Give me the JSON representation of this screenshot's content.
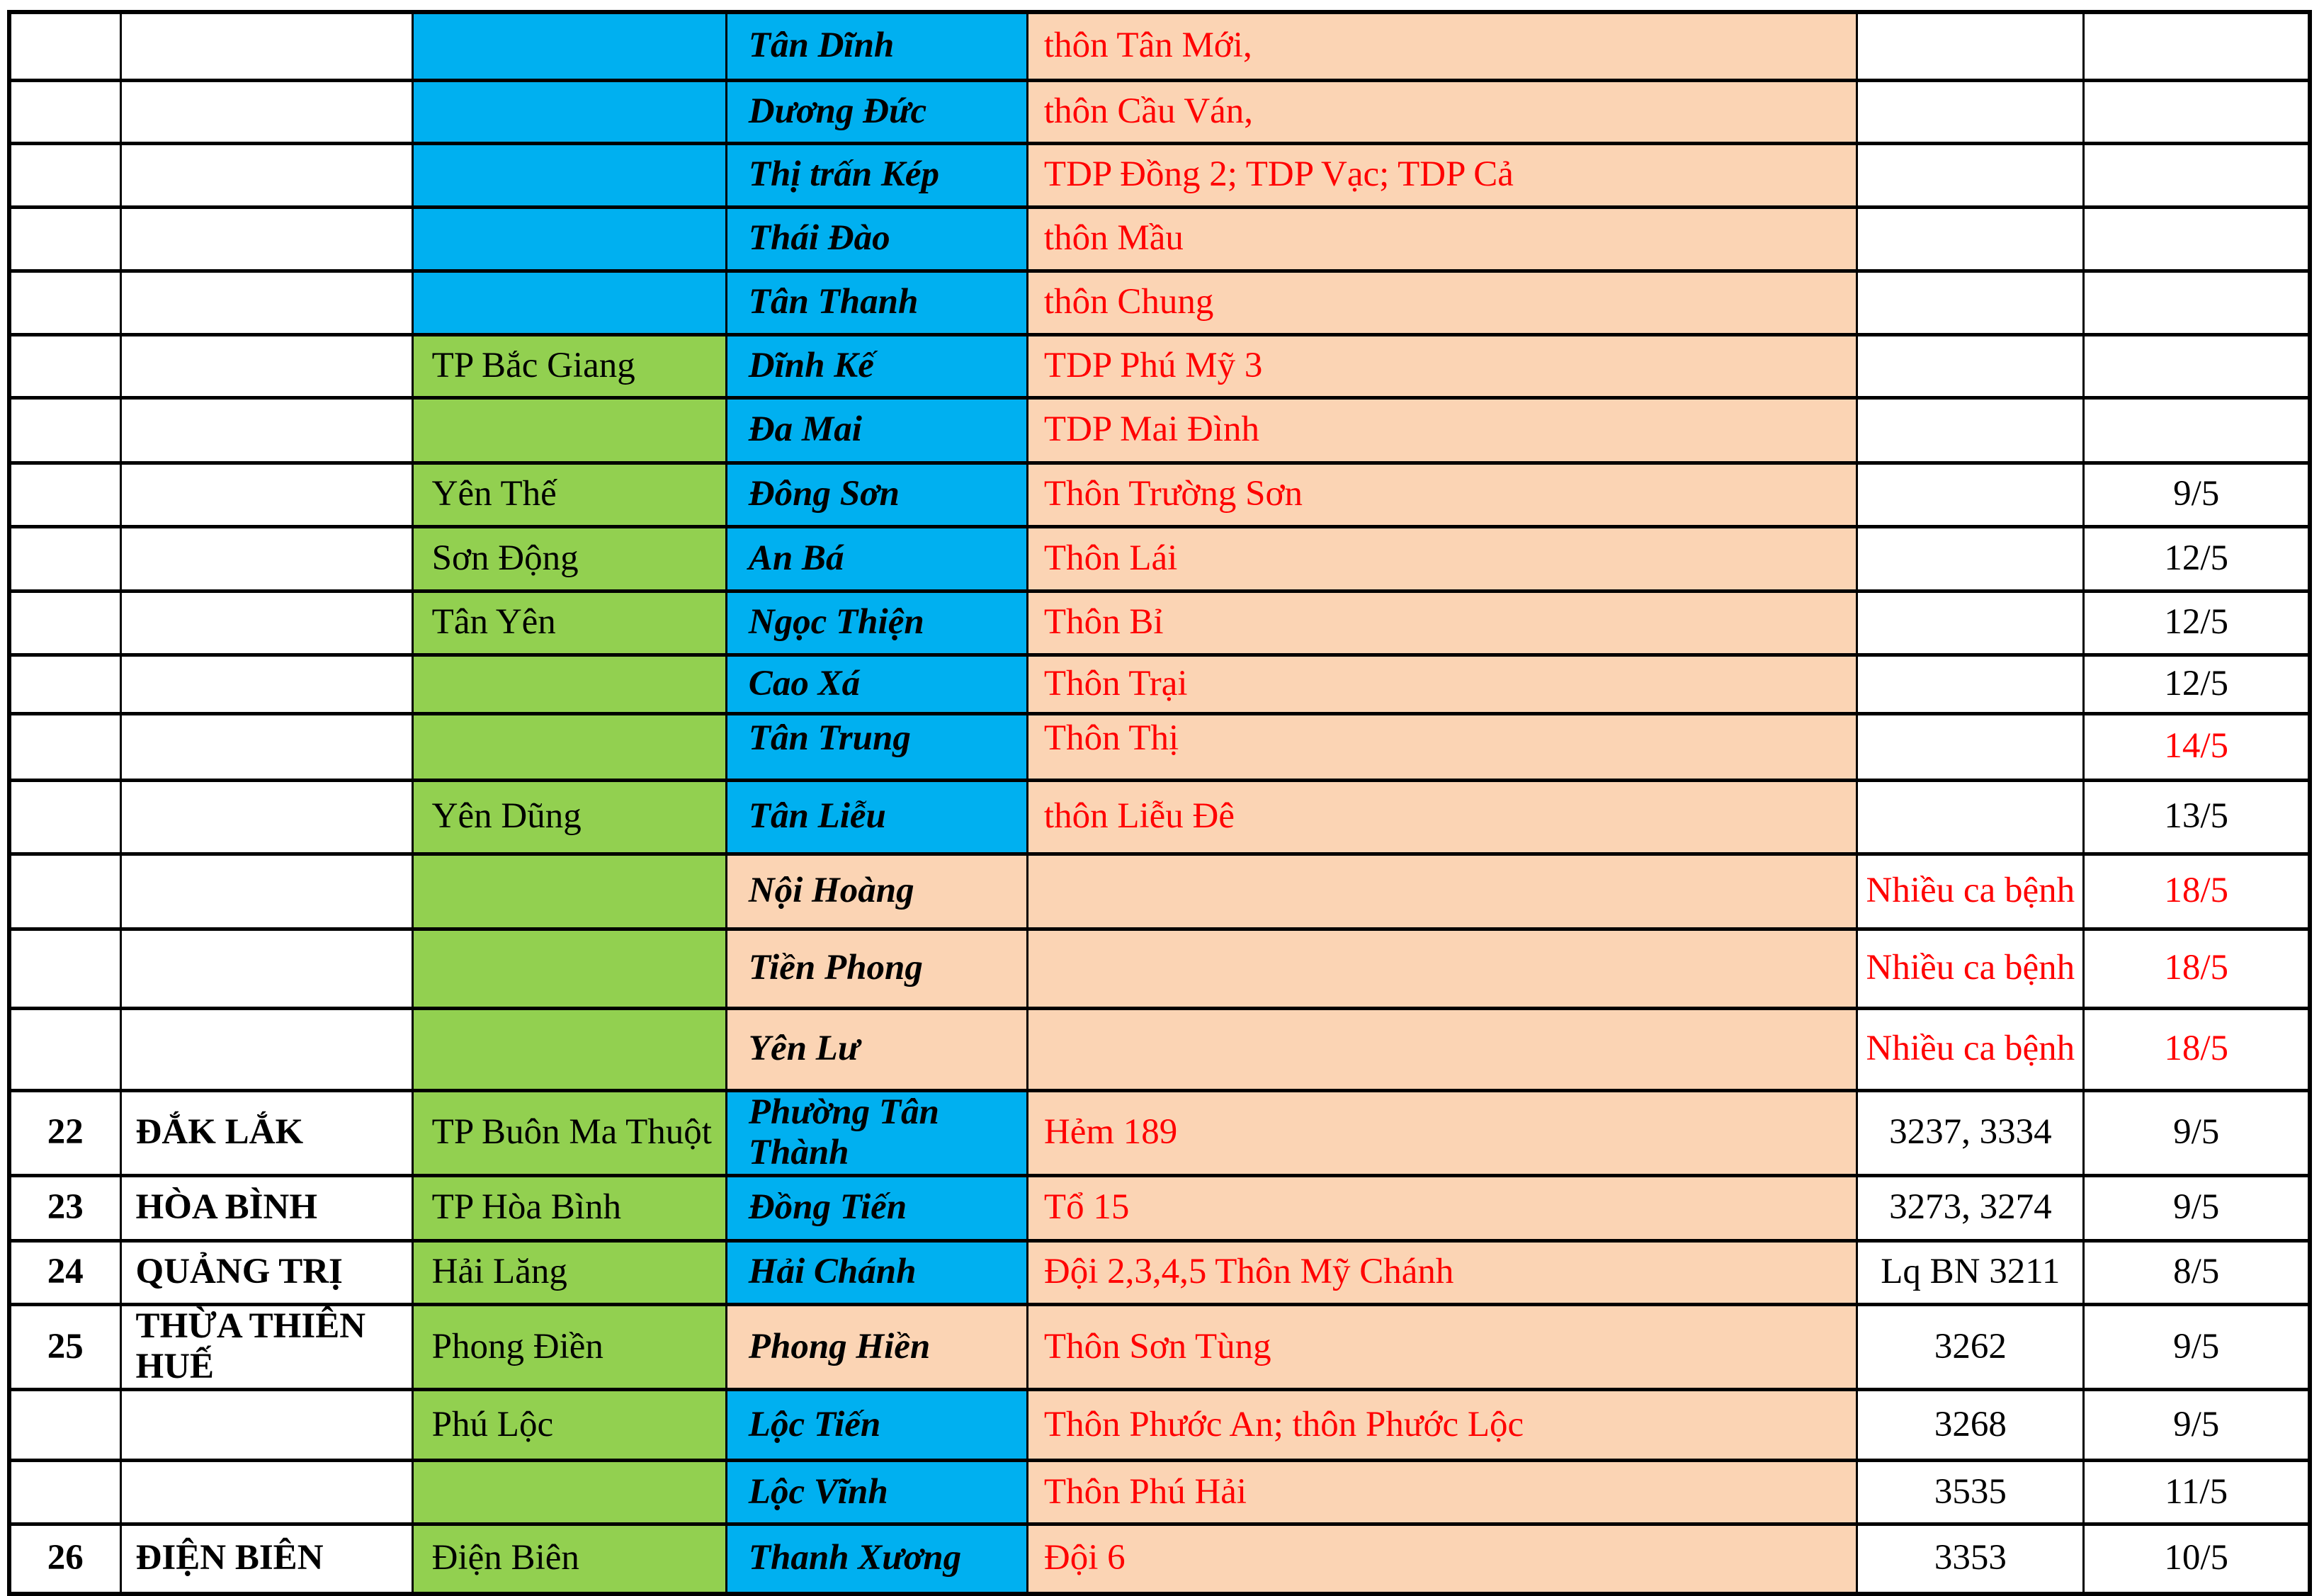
{
  "colors": {
    "cell_blue": "#00B0F0",
    "cell_green": "#92D050",
    "cell_peach": "#FBD4B4",
    "text_red": "#FF0000",
    "text_black": "#000000",
    "border_black": "#000000",
    "page_background": "#FFFFFF"
  },
  "table": {
    "rows": [
      {
        "no": "",
        "province": "",
        "district": "",
        "district_bg": "blue",
        "commune": "Tân Dĩnh",
        "commune_bg": "blue",
        "village": "thôn Tân Mới,",
        "cases": "",
        "cases_red": false,
        "date": "",
        "date_red": false,
        "top": false,
        "h": 96
      },
      {
        "no": "",
        "province": "",
        "district": "",
        "district_bg": "blue",
        "commune": "Dương Đức",
        "commune_bg": "blue",
        "village": "thôn Cầu Ván,",
        "cases": "",
        "cases_red": false,
        "date": "",
        "date_red": false,
        "top": false,
        "h": 89
      },
      {
        "no": "",
        "province": "",
        "district": "",
        "district_bg": "blue",
        "commune": "Thị trấn Kép",
        "commune_bg": "blue",
        "village": "TDP Đồng 2; TDP Vạc; TDP Cả",
        "cases": "",
        "cases_red": false,
        "date": "",
        "date_red": false,
        "top": false,
        "h": 90
      },
      {
        "no": "",
        "province": "",
        "district": "",
        "district_bg": "blue",
        "commune": "Thái Đào",
        "commune_bg": "blue",
        "village": "thôn Mầu",
        "cases": "",
        "cases_red": false,
        "date": "",
        "date_red": false,
        "top": false,
        "h": 90
      },
      {
        "no": "",
        "province": "",
        "district": "",
        "district_bg": "blue",
        "commune": "Tân Thanh",
        "commune_bg": "blue",
        "village": "thôn Chung",
        "cases": "",
        "cases_red": false,
        "date": "",
        "date_red": false,
        "top": false,
        "h": 90
      },
      {
        "no": "",
        "province": "",
        "district": "TP Bắc Giang",
        "district_bg": "green",
        "commune": "Dĩnh Kế",
        "commune_bg": "blue",
        "village": "TDP Phú Mỹ 3",
        "cases": "",
        "cases_red": false,
        "date": "",
        "date_red": false,
        "top": false,
        "h": 89
      },
      {
        "no": "",
        "province": "",
        "district": "",
        "district_bg": "green",
        "commune": "Đa Mai",
        "commune_bg": "blue",
        "village": "TDP Mai Đình",
        "cases": "",
        "cases_red": false,
        "date": "",
        "date_red": false,
        "top": false,
        "h": 92
      },
      {
        "no": "",
        "province": "",
        "district": "Yên Thế",
        "district_bg": "green",
        "commune": "Đông Sơn",
        "commune_bg": "blue",
        "village": "Thôn Trường Sơn",
        "cases": "",
        "cases_red": false,
        "date": "9/5",
        "date_red": false,
        "top": false,
        "h": 90
      },
      {
        "no": "",
        "province": "",
        "district": "Sơn Động",
        "district_bg": "green",
        "commune": "An Bá",
        "commune_bg": "blue",
        "village": "Thôn Lái",
        "cases": "",
        "cases_red": false,
        "date": "12/5",
        "date_red": false,
        "top": false,
        "h": 91
      },
      {
        "no": "",
        "province": "",
        "district": "Tân Yên",
        "district_bg": "green",
        "commune": "Ngọc Thiện",
        "commune_bg": "blue",
        "village": "Thôn Bỉ",
        "cases": "",
        "cases_red": false,
        "date": "12/5",
        "date_red": false,
        "top": false,
        "h": 90
      },
      {
        "no": "",
        "province": "",
        "district": "",
        "district_bg": "green",
        "commune": "Cao Xá",
        "commune_bg": "blue",
        "village": "Thôn Trại",
        "cases": "",
        "cases_red": false,
        "date": "12/5",
        "date_red": false,
        "top": false,
        "h": 83
      },
      {
        "no": "",
        "province": "",
        "district": "",
        "district_bg": "green",
        "commune": "Tân Trung",
        "commune_bg": "blue",
        "village": "Thôn Thị",
        "cases": "",
        "cases_red": false,
        "date": "14/5",
        "date_red": true,
        "top": true,
        "h": 94
      },
      {
        "no": "",
        "province": "",
        "district": "Yên Dũng",
        "district_bg": "green",
        "commune": "Tân Liễu",
        "commune_bg": "blue",
        "village": "thôn Liễu Đê",
        "cases": "",
        "cases_red": false,
        "date": "13/5",
        "date_red": false,
        "top": false,
        "h": 104
      },
      {
        "no": "",
        "province": "",
        "district": "",
        "district_bg": "green",
        "commune": "Nội Hoàng",
        "commune_bg": "peach",
        "village": "",
        "cases": "Nhiều ca bệnh",
        "cases_red": true,
        "date": "18/5",
        "date_red": true,
        "top": false,
        "h": 106
      },
      {
        "no": "",
        "province": "",
        "district": "",
        "district_bg": "green",
        "commune": "Tiền Phong",
        "commune_bg": "peach",
        "village": "",
        "cases": "Nhiều ca bệnh",
        "cases_red": true,
        "date": "18/5",
        "date_red": true,
        "top": false,
        "h": 112
      },
      {
        "no": "",
        "province": "",
        "district": "",
        "district_bg": "green",
        "commune": "Yên Lư",
        "commune_bg": "peach",
        "village": "",
        "cases": "Nhiều ca bệnh",
        "cases_red": true,
        "date": "18/5",
        "date_red": true,
        "top": false,
        "h": 116
      },
      {
        "no": "22",
        "province": "ĐẮK LẮK",
        "district": "TP Buôn Ma Thuột",
        "district_bg": "green",
        "commune": "Phường Tân Thành",
        "commune_bg": "blue",
        "village": "Hẻm 189",
        "cases": "3237, 3334",
        "cases_red": false,
        "date": "9/5",
        "date_red": false,
        "top": false,
        "h": 112
      },
      {
        "no": "23",
        "province": "HÒA BÌNH",
        "district": "TP Hòa Bình",
        "district_bg": "green",
        "commune": "Đồng Tiến",
        "commune_bg": "blue",
        "village": "Tổ 15",
        "cases": "3273, 3274",
        "cases_red": false,
        "date": "9/5",
        "date_red": false,
        "top": false,
        "h": 92
      },
      {
        "no": "24",
        "province": "QUẢNG TRỊ",
        "district": "Hải Lăng",
        "district_bg": "green",
        "commune": "Hải Chánh",
        "commune_bg": "blue",
        "village": "Đội 2,3,4,5 Thôn Mỹ Chánh",
        "cases": "Lq BN 3211",
        "cases_red": false,
        "date": "8/5",
        "date_red": false,
        "top": false,
        "h": 90
      },
      {
        "no": "25",
        "province": "THỪA THIÊN HUẾ",
        "district": "Phong Điền",
        "district_bg": "green",
        "commune": "Phong Hiền",
        "commune_bg": "peach",
        "village": "Thôn Sơn Tùng",
        "cases": "3262",
        "cases_red": false,
        "date": "9/5",
        "date_red": false,
        "top": false,
        "h": 112
      },
      {
        "no": "",
        "province": "",
        "district": "Phú Lộc",
        "district_bg": "green",
        "commune": "Lộc Tiến",
        "commune_bg": "blue",
        "village": "Thôn Phước An; thôn Phước Lộc",
        "cases": "3268",
        "cases_red": false,
        "date": "9/5",
        "date_red": false,
        "top": false,
        "h": 100
      },
      {
        "no": "",
        "province": "",
        "district": "",
        "district_bg": "green",
        "commune": "Lộc Vĩnh",
        "commune_bg": "blue",
        "village": "Thôn Phú Hải",
        "cases": "3535",
        "cases_red": false,
        "date": "11/5",
        "date_red": false,
        "top": false,
        "h": 90
      },
      {
        "no": "26",
        "province": "ĐIỆN BIÊN",
        "district": "Điện Biên",
        "district_bg": "green",
        "commune": "Thanh Xương",
        "commune_bg": "blue",
        "village": "Đội 6",
        "cases": "3353",
        "cases_red": false,
        "date": "10/5",
        "date_red": false,
        "top": false,
        "h": 98
      }
    ]
  }
}
